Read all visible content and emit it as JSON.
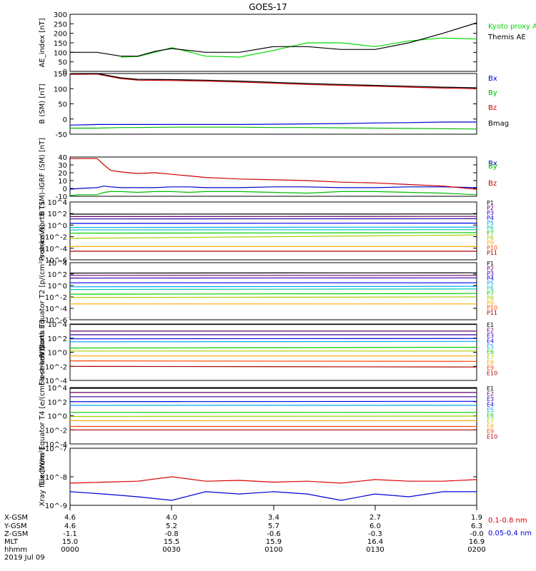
{
  "title": "GOES-17",
  "footer": {
    "row_labels": [
      "X-GSM",
      "Y-GSM",
      "Z-GSM",
      "MLT",
      "hhmm",
      "2019 Jul 09"
    ],
    "columns": [
      [
        "4.6",
        "4.6",
        "-1.1",
        "15.0",
        "0000"
      ],
      [
        "4.0",
        "5.2",
        "-0.8",
        "15.5",
        "0030"
      ],
      [
        "3.4",
        "5.7",
        "-0.6",
        "15.9",
        "0100"
      ],
      [
        "2.7",
        "6.0",
        "-0.3",
        "16.4",
        "0130"
      ],
      [
        "1.9",
        "6.3",
        "-0.0",
        "16.9",
        "0200"
      ]
    ]
  },
  "chart_data": [
    {
      "type": "line",
      "ylabel": "AE_index [nT]",
      "ylim": [
        0,
        300
      ],
      "yticks": [
        "0",
        "50",
        "100",
        "150",
        "200",
        "250",
        "300"
      ],
      "x": [
        0,
        8,
        15,
        20,
        25,
        30,
        40,
        50,
        60,
        70,
        80,
        90,
        100,
        110,
        120
      ],
      "series": [
        {
          "name": "Kyoto proxy AE",
          "color": "#00dd00",
          "values": [
            null,
            null,
            75,
            78,
            100,
            125,
            80,
            75,
            110,
            150,
            150,
            130,
            160,
            175,
            170
          ]
        },
        {
          "name": "Themis AE",
          "color": "#000000",
          "values": [
            100,
            100,
            80,
            80,
            105,
            120,
            100,
            100,
            130,
            130,
            115,
            115,
            150,
            200,
            255
          ]
        }
      ]
    },
    {
      "type": "line",
      "ylabel": "B (SM) [nT]",
      "ylim": [
        -50,
        150
      ],
      "yticks": [
        "-50",
        "0",
        "50",
        "100",
        "150"
      ],
      "x": [
        0,
        8,
        15,
        20,
        30,
        40,
        50,
        60,
        70,
        80,
        90,
        100,
        110,
        120
      ],
      "series": [
        {
          "name": "Bx",
          "color": "#0000cc",
          "values": [
            -20,
            -18,
            -18,
            -18,
            -18,
            -18,
            -18,
            -17,
            -16,
            -15,
            -13,
            -12,
            -10,
            -10
          ]
        },
        {
          "name": "By",
          "color": "#00bb00",
          "values": [
            -30,
            -30,
            -28,
            -28,
            -27,
            -27,
            -27,
            -28,
            -28,
            -29,
            -30,
            -31,
            -32,
            -33
          ]
        },
        {
          "name": "Bz",
          "color": "#cc0000",
          "values": [
            147,
            148,
            133,
            128,
            127,
            125,
            122,
            118,
            114,
            111,
            108,
            105,
            102,
            100
          ]
        },
        {
          "name": "Bmag",
          "color": "#000000",
          "values": [
            150,
            150,
            136,
            131,
            130,
            128,
            125,
            121,
            117,
            114,
            111,
            108,
            105,
            103
          ]
        }
      ]
    },
    {
      "type": "line",
      "ylabel": "B (SM)-IGRF (SM) [nT]",
      "ylim": [
        -10,
        40
      ],
      "yticks": [
        "-10",
        "0",
        "10",
        "20",
        "30",
        "40"
      ],
      "x": [
        0,
        3,
        8,
        10,
        12,
        15,
        20,
        25,
        30,
        35,
        40,
        45,
        50,
        60,
        70,
        80,
        90,
        100,
        110,
        120
      ],
      "series": [
        {
          "name": "Bx",
          "color": "#0000cc",
          "values": [
            -1,
            0,
            1,
            3,
            2,
            1,
            1,
            1,
            2,
            2,
            1,
            1,
            1,
            2,
            2,
            1,
            1,
            2,
            2,
            1
          ]
        },
        {
          "name": "By",
          "color": "#00bb00",
          "values": [
            -9,
            -8,
            -8,
            -5,
            -4,
            -4,
            -5,
            -4,
            -4,
            -5,
            -4,
            -4,
            -4,
            -5,
            -6,
            -4,
            -4,
            -5,
            -6,
            -8
          ]
        },
        {
          "name": "Bz",
          "color": "#cc0000",
          "values": [
            38,
            38,
            38,
            30,
            23,
            21,
            19,
            20,
            18,
            16,
            14,
            13,
            12,
            11,
            10,
            8,
            7,
            5,
            3,
            -1
          ]
        }
      ]
    },
    {
      "type": "line",
      "ylabel": "Protons North T1",
      "log": true,
      "ylim": [
        1e-06,
        10000.0
      ],
      "yticks": [
        "10^-6",
        "10^-4",
        "10^-2",
        "10^0",
        "10^2",
        "10^4"
      ],
      "x": [
        0,
        120
      ],
      "series": [
        {
          "name": "P1",
          "color": "#000000",
          "values": [
            80,
            85
          ]
        },
        {
          "name": "P2",
          "color": "#6a006a",
          "values": [
            30,
            32
          ]
        },
        {
          "name": "P3",
          "color": "#3300aa",
          "values": [
            12,
            13
          ]
        },
        {
          "name": "P4",
          "color": "#0000ee",
          "values": [
            2,
            2.2
          ]
        },
        {
          "name": "P5",
          "color": "#00aaee",
          "values": [
            0.4,
            0.45
          ]
        },
        {
          "name": "P6",
          "color": "#00ccaa",
          "values": [
            0.15,
            0.16
          ]
        },
        {
          "name": "P7",
          "color": "#00cc00",
          "values": [
            0.04,
            0.05
          ]
        },
        {
          "name": "P8",
          "color": "#aacc00",
          "values": [
            0.005,
            0.02
          ]
        },
        {
          "name": "P9",
          "color": "#ffaa00",
          "values": [
            0.0002,
            0.0002
          ]
        },
        {
          "name": "P10",
          "color": "#ff4400",
          "values": [
            null,
            null
          ]
        },
        {
          "name": "P11",
          "color": "#aa0000",
          "values": [
            3e-05,
            3e-05
          ]
        }
      ]
    },
    {
      "type": "line",
      "ylabel": "Protons Equator T2 [p/(cm²-s-sr-keV)]",
      "log": true,
      "ylim": [
        1e-06,
        10000.0
      ],
      "yticks": [
        "10^-6",
        "10^-4",
        "10^-2",
        "10^0",
        "10^2",
        "10^4"
      ],
      "x": [
        0,
        120
      ],
      "series": [
        {
          "name": "P1",
          "color": "#000000",
          "values": [
            150,
            170
          ]
        },
        {
          "name": "P2",
          "color": "#6a006a",
          "values": [
            60,
            60
          ]
        },
        {
          "name": "P3",
          "color": "#3300aa",
          "values": [
            20,
            22
          ]
        },
        {
          "name": "P4",
          "color": "#0000ee",
          "values": [
            3,
            3
          ]
        },
        {
          "name": "P5",
          "color": "#00aaee",
          "values": [
            0.6,
            0.7
          ]
        },
        {
          "name": "P6",
          "color": "#00ccaa",
          "values": [
            0.2,
            0.25
          ]
        },
        {
          "name": "P7",
          "color": "#00cc00",
          "values": [
            0.03,
            0.04
          ]
        },
        {
          "name": "P8",
          "color": "#aacc00",
          "values": [
            0.008,
            0.01
          ]
        },
        {
          "name": "P9",
          "color": "#ffaa00",
          "values": [
            0.0006,
            0.0006
          ]
        },
        {
          "name": "P10",
          "color": "#ff4400",
          "values": [
            null,
            null
          ]
        },
        {
          "name": "P11",
          "color": "#aa0000",
          "values": [
            null,
            null
          ]
        }
      ]
    },
    {
      "type": "line",
      "ylabel": "Electrons North T3",
      "log": true,
      "ylim": [
        0.0001,
        10000.0
      ],
      "yticks": [
        "10^-4",
        "10^-2",
        "10^0",
        "10^2",
        "10^4"
      ],
      "x": [
        0,
        120
      ],
      "series": [
        {
          "name": "E1",
          "color": "#000000",
          "values": [
            9000,
            9000
          ]
        },
        {
          "name": "E2",
          "color": "#6a006a",
          "values": [
            1000,
            1000
          ]
        },
        {
          "name": "E3",
          "color": "#3300aa",
          "values": [
            300,
            300
          ]
        },
        {
          "name": "E4",
          "color": "#0000ee",
          "values": [
            80,
            90
          ]
        },
        {
          "name": "E5",
          "color": "#00aaee",
          "values": [
            30,
            35
          ]
        },
        {
          "name": "E6",
          "color": "#00cc00",
          "values": [
            4,
            5
          ]
        },
        {
          "name": "E7",
          "color": "#aacc00",
          "values": [
            1.5,
            1.5
          ]
        },
        {
          "name": "E8",
          "color": "#ffaa00",
          "values": [
            0.3,
            0.3
          ]
        },
        {
          "name": "E9",
          "color": "#ff4400",
          "values": [
            0.06,
            0.05
          ]
        },
        {
          "name": "E10",
          "color": "#aa0000",
          "values": [
            0.01,
            0.008
          ]
        }
      ]
    },
    {
      "type": "line",
      "ylabel": "Electrons Equator T4 [e/(cm²-s-sr-keV)]",
      "log": true,
      "ylim": [
        0.0001,
        10000.0
      ],
      "yticks": [
        "10^-4",
        "10^-2",
        "10^0",
        "10^2",
        "10^4"
      ],
      "x": [
        0,
        120
      ],
      "series": [
        {
          "name": "E1",
          "color": "#000000",
          "values": [
            8000,
            8000
          ]
        },
        {
          "name": "E2",
          "color": "#6a006a",
          "values": [
            2000,
            2000
          ]
        },
        {
          "name": "E3",
          "color": "#3300aa",
          "values": [
            500,
            500
          ]
        },
        {
          "name": "E4",
          "color": "#0000ee",
          "values": [
            100,
            110
          ]
        },
        {
          "name": "E5",
          "color": "#00aaee",
          "values": [
            30,
            30
          ]
        },
        {
          "name": "E6",
          "color": "#00cc00",
          "values": [
            3,
            3
          ]
        },
        {
          "name": "E7",
          "color": "#aacc00",
          "values": [
            0.8,
            0.9
          ]
        },
        {
          "name": "E8",
          "color": "#ffaa00",
          "values": [
            0.2,
            0.2
          ]
        },
        {
          "name": "E9",
          "color": "#ff4400",
          "values": [
            0.03,
            0.03
          ]
        },
        {
          "name": "E10",
          "color": "#aa0000",
          "values": [
            0.01,
            0.01
          ]
        }
      ]
    },
    {
      "type": "line",
      "ylabel": "Xray flux [W/m²]",
      "log": true,
      "ylim": [
        1e-09,
        1e-07
      ],
      "yticks": [
        "10^-9",
        "10^-8",
        "10^-7"
      ],
      "x": [
        0,
        10,
        20,
        30,
        40,
        50,
        60,
        70,
        80,
        90,
        100,
        110,
        120
      ],
      "series": [
        {
          "name": "0.1-0.8 nm",
          "color": "#dd0000",
          "values": [
            6e-09,
            6.5e-09,
            7e-09,
            1e-08,
            7e-09,
            7.5e-09,
            6.5e-09,
            7e-09,
            6e-09,
            8e-09,
            7e-09,
            7e-09,
            8e-09
          ]
        },
        {
          "name": "0.05-0.4 nm",
          "color": "#0000dd",
          "values": [
            3e-09,
            2.5e-09,
            2e-09,
            1.5e-09,
            3e-09,
            2.5e-09,
            3e-09,
            2.5e-09,
            1.5e-09,
            2.5e-09,
            2e-09,
            3e-09,
            3e-09
          ]
        }
      ]
    }
  ]
}
